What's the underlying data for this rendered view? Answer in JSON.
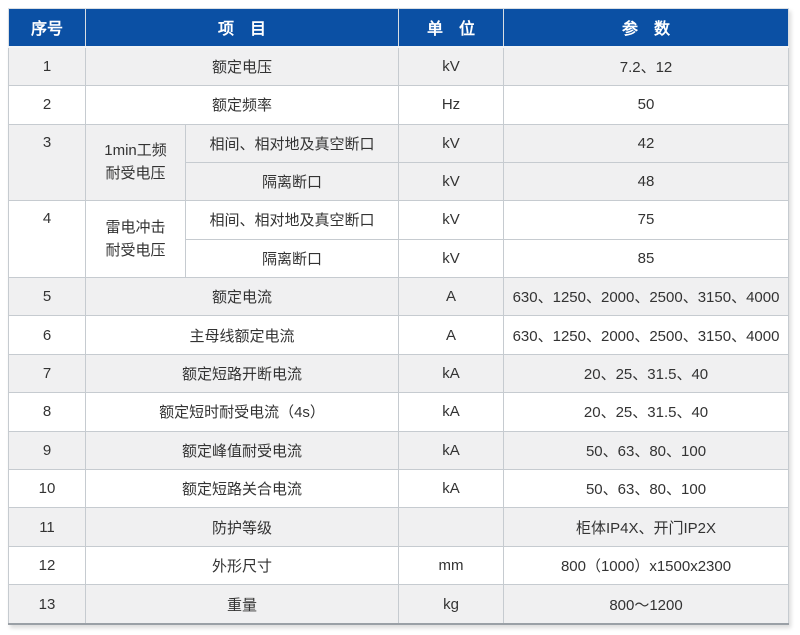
{
  "colors": {
    "header_bg": "#0b50a4",
    "header_text": "#ffffff",
    "row_alt_bg": "#f0f0f1",
    "row_bg": "#ffffff",
    "border": "#c6cbd0",
    "text": "#333333"
  },
  "table": {
    "headers": {
      "no": "序号",
      "item": "项　目",
      "unit": "单　位",
      "param": "参　数"
    },
    "rows": [
      {
        "no": "1",
        "item": "额定电压",
        "unit": "kV",
        "param": "7.2、12"
      },
      {
        "no": "2",
        "item": "额定频率",
        "unit": "Hz",
        "param": "50"
      },
      {
        "no": "3",
        "group_line1": "1min工频",
        "group_line2": "耐受电压",
        "subs": [
          {
            "item": "相间、相对地及真空断口",
            "unit": "kV",
            "param": "42"
          },
          {
            "item": "隔离断口",
            "unit": "kV",
            "param": "48"
          }
        ]
      },
      {
        "no": "4",
        "group_line1": "雷电冲击",
        "group_line2": "耐受电压",
        "subs": [
          {
            "item": "相间、相对地及真空断口",
            "unit": "kV",
            "param": "75"
          },
          {
            "item": "隔离断口",
            "unit": "kV",
            "param": "85"
          }
        ]
      },
      {
        "no": "5",
        "item": "额定电流",
        "unit": "A",
        "param": "630、1250、2000、2500、3150、4000"
      },
      {
        "no": "6",
        "item": "主母线额定电流",
        "unit": "A",
        "param": "630、1250、2000、2500、3150、4000"
      },
      {
        "no": "7",
        "item": "额定短路开断电流",
        "unit": "kA",
        "param": "20、25、31.5、40"
      },
      {
        "no": "8",
        "item": "额定短时耐受电流（4s）",
        "unit": "kA",
        "param": "20、25、31.5、40"
      },
      {
        "no": "9",
        "item": "额定峰值耐受电流",
        "unit": "kA",
        "param": "50、63、80、100"
      },
      {
        "no": "10",
        "item": "额定短路关合电流",
        "unit": "kA",
        "param": "50、63、80、100"
      },
      {
        "no": "11",
        "item": "防护等级",
        "unit": "",
        "param": "柜体IP4X、开门IP2X"
      },
      {
        "no": "12",
        "item": "外形尺寸",
        "unit": "mm",
        "param": "800（1000）x1500x2300"
      },
      {
        "no": "13",
        "item": "重量",
        "unit": "kg",
        "param": "800～1200"
      }
    ]
  }
}
